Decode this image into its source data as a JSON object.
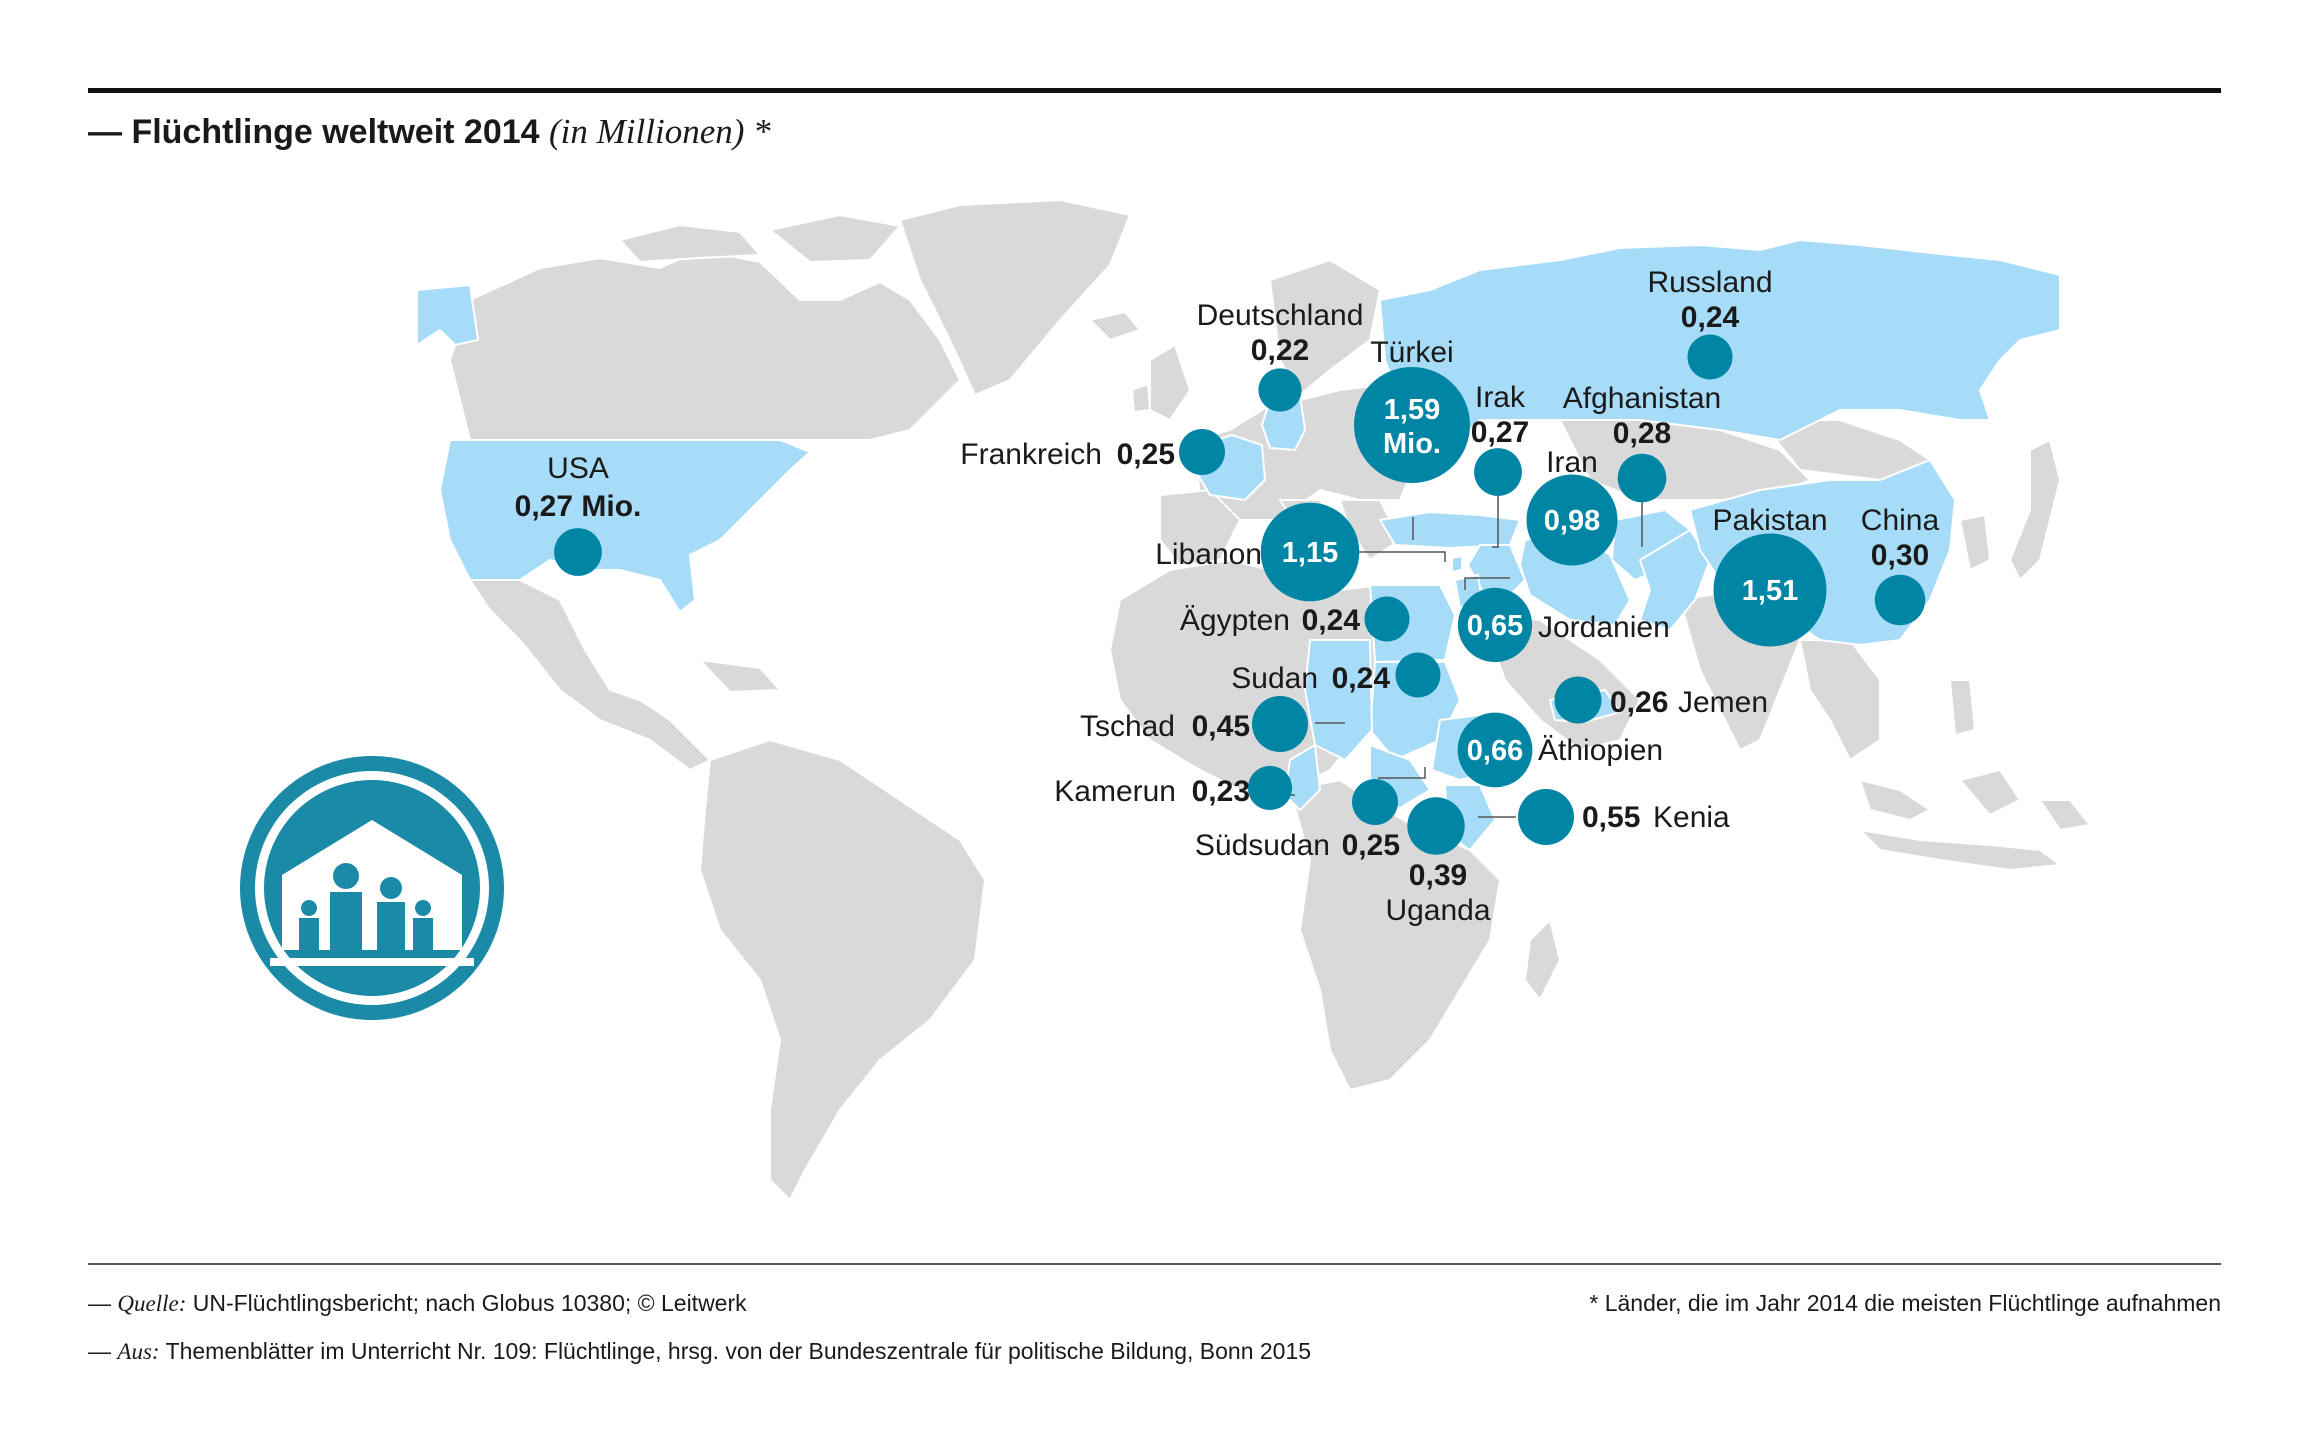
{
  "title": {
    "dash": "— ",
    "main": "Flüchtlinge weltweit 2014",
    "sub": "(in Millionen) *"
  },
  "colors": {
    "land": "#d9d9d9",
    "highlight": "#a6dcf7",
    "bubble": "#0085a5",
    "icon": "#1a8aa6",
    "text": "#1a1a1a"
  },
  "icon": "refugee-shelter-family-icon",
  "countries": [
    {
      "id": "usa",
      "name": "USA",
      "value": 0.27,
      "label": "0,27 Mio."
    },
    {
      "id": "russland",
      "name": "Russland",
      "value": 0.24,
      "label": "0,24"
    },
    {
      "id": "deutschland",
      "name": "Deutschland",
      "value": 0.22,
      "label": "0,22"
    },
    {
      "id": "tuerkei",
      "name": "Türkei",
      "value": 1.59,
      "label": "1,59",
      "label2": "Mio."
    },
    {
      "id": "irak",
      "name": "Irak",
      "value": 0.27,
      "label": "0,27"
    },
    {
      "id": "afghanistan",
      "name": "Afghanistan",
      "value": 0.28,
      "label": "0,28"
    },
    {
      "id": "frankreich",
      "name": "Frankreich",
      "value": 0.25,
      "label": "0,25"
    },
    {
      "id": "iran",
      "name": "Iran",
      "value": 0.98,
      "label": "0,98"
    },
    {
      "id": "pakistan",
      "name": "Pakistan",
      "value": 1.51,
      "label": "1,51"
    },
    {
      "id": "china",
      "name": "China",
      "value": 0.3,
      "label": "0,30"
    },
    {
      "id": "libanon",
      "name": "Libanon",
      "value": 1.15,
      "label": "1,15"
    },
    {
      "id": "aegypten",
      "name": "Ägypten",
      "value": 0.24,
      "label": "0,24"
    },
    {
      "id": "jordanien",
      "name": "Jordanien",
      "value": 0.65,
      "label": "0,65"
    },
    {
      "id": "sudan",
      "name": "Sudan",
      "value": 0.24,
      "label": "0,24"
    },
    {
      "id": "jemen",
      "name": "Jemen",
      "value": 0.26,
      "label": "0,26"
    },
    {
      "id": "tschad",
      "name": "Tschad",
      "value": 0.45,
      "label": "0,45"
    },
    {
      "id": "aethiopien",
      "name": "Äthiopien",
      "value": 0.66,
      "label": "0,66"
    },
    {
      "id": "kamerun",
      "name": "Kamerun",
      "value": 0.23,
      "label": "0,23"
    },
    {
      "id": "kenia",
      "name": "Kenia",
      "value": 0.55,
      "label": "0,55"
    },
    {
      "id": "suedsudan",
      "name": "Südsudan",
      "value": 0.25,
      "label": "0,25"
    },
    {
      "id": "uganda",
      "name": "Uganda",
      "value": 0.39,
      "label": "0,39"
    }
  ],
  "footer": {
    "line1_prefix": "— ",
    "line1_source_label": "Quelle:",
    "line1_text": " UN-Flüchtlingsbericht; nach Globus 10380; © Leitwerk",
    "line2_prefix": "— ",
    "line2_source_label": "Aus:",
    "line2_text": " Themenblätter im Unterricht Nr. 109: Flüchtlinge, hrsg. von der Bundeszentrale für politische Bildung, Bonn 2015",
    "note": "*  Länder, die im Jahr 2014 die meisten Flüchtlinge aufnahmen"
  }
}
